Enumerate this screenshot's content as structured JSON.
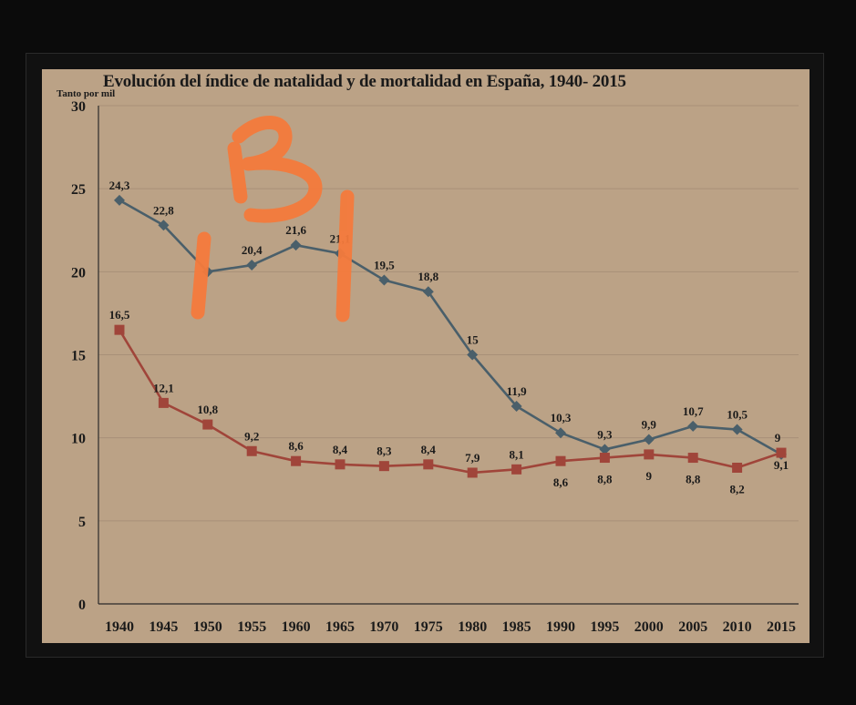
{
  "chart_data": {
    "type": "line",
    "title": "Evolución del índice de natalidad y de mortalidad en España, 1940- 2015",
    "ylabel": "Tanto por mil",
    "xlabel": "",
    "ylim": [
      0,
      30
    ],
    "yticks": [
      "0",
      "5",
      "10",
      "15",
      "20",
      "25",
      "30"
    ],
    "categories": [
      "1940",
      "1945",
      "1950",
      "1955",
      "1960",
      "1965",
      "1970",
      "1975",
      "1980",
      "1985",
      "1990",
      "1995",
      "2000",
      "2005",
      "2010",
      "2015"
    ],
    "grid": true,
    "series": [
      {
        "values": [
          24.3,
          22.8,
          20,
          20.4,
          21.6,
          21.1,
          19.5,
          18.8,
          15,
          11.9,
          10.3,
          9.3,
          9.9,
          10.7,
          10.5,
          9
        ],
        "labels": [
          "24,3",
          "22,8",
          "",
          "20,4",
          "21,6",
          "21,1",
          "19,5",
          "18,8",
          "15",
          "11,9",
          "10,3",
          "9,3",
          "9,9",
          "10,7",
          "10,5",
          "9"
        ],
        "color": "#4a5f6a",
        "marker": "diamond"
      },
      {
        "values": [
          16.5,
          12.1,
          10.8,
          9.2,
          8.6,
          8.4,
          8.3,
          8.4,
          7.9,
          8.1,
          8.6,
          8.8,
          9,
          8.8,
          8.2,
          9.1
        ],
        "labels": [
          "16,5",
          "12,1",
          "10,8",
          "9,2",
          "8,6",
          "8,4",
          "8,3",
          "8,4",
          "7,9",
          "8,1",
          "8,6",
          "8,8",
          "9",
          "8,8",
          "8,2",
          "9,1"
        ],
        "color": "#a0453a",
        "marker": "square"
      }
    ],
    "annotation": {
      "text": "1B1",
      "color": "#f47a3c"
    }
  }
}
